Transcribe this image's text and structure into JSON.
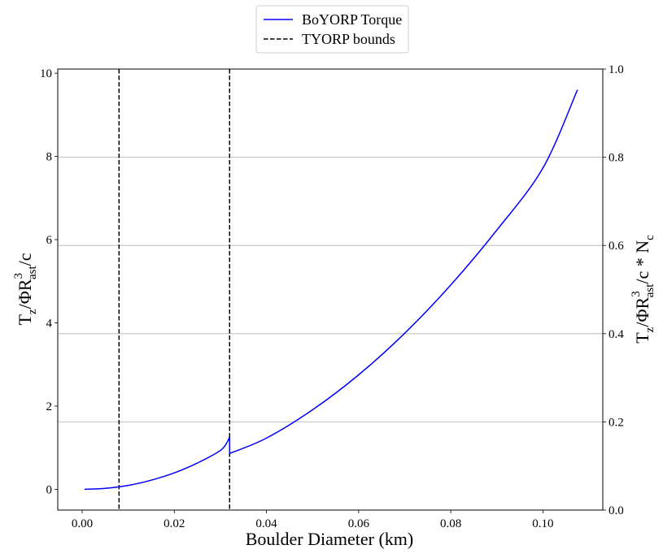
{
  "chart_data": {
    "type": "line",
    "xlabel": "Boulder Diameter (km)",
    "ylabel_left": {
      "main": "T",
      "sub1": "z",
      "mid": "/ΦR",
      "sup": "3",
      "sub2": "ast",
      "end": "/c"
    },
    "ylabel_right": {
      "main": "T",
      "sub1": "z",
      "mid": "/ΦR",
      "sup": "3",
      "sub2": "ast",
      "end": "/c * N",
      "sub3": "c"
    },
    "xlim": [
      -0.0053,
      0.113
    ],
    "ylim_left": [
      -0.5,
      10.1
    ],
    "ylim_right": [
      0.0,
      1.0
    ],
    "x_ticks": [
      0.0,
      0.02,
      0.04,
      0.06,
      0.08,
      0.1
    ],
    "x_tick_labels": [
      "0.00",
      "0.02",
      "0.04",
      "0.06",
      "0.08",
      "0.10"
    ],
    "y_left_ticks": [
      0,
      2,
      4,
      6,
      8,
      10
    ],
    "y_left_tick_labels": [
      "0",
      "2",
      "4",
      "6",
      "8",
      "10"
    ],
    "y_right_ticks": [
      0.0,
      0.2,
      0.4,
      0.6,
      0.8,
      1.0
    ],
    "y_right_tick_labels": [
      "0.0",
      "0.2",
      "0.4",
      "0.6",
      "0.8",
      "1.0"
    ],
    "grid": "horizontal lines at right-axis ticks",
    "legend": {
      "placement": "top-center",
      "entries": [
        {
          "label": "BoYORP Torque",
          "color": "#0000ff",
          "style": "solid"
        },
        {
          "label": "TYORP bounds",
          "color": "#000000",
          "style": "dashed"
        }
      ]
    },
    "series": [
      {
        "name": "BoYORP Torque",
        "color": "#0000ff",
        "axis": "left",
        "segments": [
          {
            "x": [
              0.0005,
              0.005,
              0.01,
              0.015,
              0.02,
              0.025,
              0.0302,
              0.032
            ],
            "y": [
              0.0,
              0.022,
              0.093,
              0.219,
              0.394,
              0.63,
              0.95,
              1.25
            ]
          },
          {
            "x": [
              0.032,
              0.04,
              0.05,
              0.06,
              0.07,
              0.08,
              0.09,
              0.1,
              0.1075
            ],
            "y": [
              0.86,
              1.23,
              1.91,
              2.75,
              3.75,
              4.91,
              6.23,
              7.72,
              9.6
            ]
          }
        ]
      }
    ],
    "vlines": {
      "name": "TYORP bounds",
      "color": "#000000",
      "style": "dashed",
      "x": [
        0.008,
        0.032
      ]
    }
  }
}
